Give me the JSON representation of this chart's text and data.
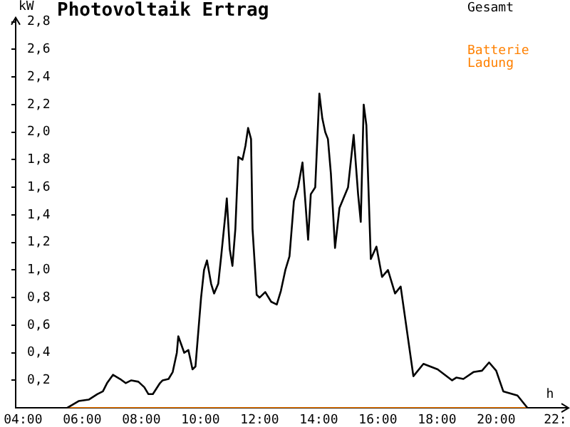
{
  "chart_data": {
    "type": "line",
    "title": "Photovoltaik Ertrag",
    "xlabel": "h",
    "ylabel": "kW",
    "xlim": [
      3.75,
      22.4
    ],
    "xticks": [
      {
        "value": 4,
        "label": "04:00"
      },
      {
        "value": 6,
        "label": "06:00"
      },
      {
        "value": 8,
        "label": "08:00"
      },
      {
        "value": 10,
        "label": "10:00"
      },
      {
        "value": 12,
        "label": "12:00"
      },
      {
        "value": 14,
        "label": "14:00"
      },
      {
        "value": 16,
        "label": "16:00"
      },
      {
        "value": 18,
        "label": "18:00"
      },
      {
        "value": 20,
        "label": "20:00"
      },
      {
        "value": 22,
        "label": "22:"
      }
    ],
    "ylim": [
      0,
      2.82
    ],
    "yticks": [
      {
        "value": 0.2,
        "label": "0,2"
      },
      {
        "value": 0.4,
        "label": "0,4"
      },
      {
        "value": 0.6,
        "label": "0,6"
      },
      {
        "value": 0.8,
        "label": "0,8"
      },
      {
        "value": 1.0,
        "label": "1,0"
      },
      {
        "value": 1.2,
        "label": "1,2"
      },
      {
        "value": 1.4,
        "label": "1,4"
      },
      {
        "value": 1.6,
        "label": "1,6"
      },
      {
        "value": 1.8,
        "label": "1,8"
      },
      {
        "value": 2.0,
        "label": "2,0"
      },
      {
        "value": 2.2,
        "label": "2,2"
      },
      {
        "value": 2.4,
        "label": "2,4"
      },
      {
        "value": 2.6,
        "label": "2,6"
      },
      {
        "value": 2.8,
        "label": "2,8"
      }
    ],
    "grid": false,
    "legend": "top right",
    "marker": "none",
    "line_style": "solid",
    "series": [
      {
        "name": "Gesamt",
        "color": "#000000",
        "x": [
          5.49,
          5.88,
          6.22,
          6.51,
          6.7,
          6.84,
          7.04,
          7.28,
          7.47,
          7.66,
          7.9,
          8.1,
          8.24,
          8.39,
          8.63,
          8.72,
          8.92,
          9.06,
          9.2,
          9.25,
          9.45,
          9.59,
          9.73,
          9.83,
          10.02,
          10.12,
          10.22,
          10.36,
          10.46,
          10.6,
          10.7,
          10.84,
          10.89,
          10.99,
          11.08,
          11.18,
          11.28,
          11.42,
          11.52,
          11.61,
          11.71,
          11.76,
          11.9,
          12.0,
          12.19,
          12.39,
          12.58,
          12.72,
          12.87,
          13.01,
          13.16,
          13.3,
          13.45,
          13.64,
          13.73,
          13.88,
          14.02,
          14.12,
          14.22,
          14.31,
          14.41,
          14.55,
          14.7,
          14.99,
          15.18,
          15.33,
          15.42,
          15.52,
          15.61,
          15.76,
          15.95,
          16.14,
          16.34,
          16.58,
          16.77,
          17.2,
          17.54,
          18.02,
          18.51,
          18.65,
          18.89,
          19.23,
          19.52,
          19.76,
          20.0,
          20.24,
          20.72,
          21.06
        ],
        "values": [
          0,
          0.05,
          0.06,
          0.1,
          0.12,
          0.18,
          0.24,
          0.21,
          0.18,
          0.2,
          0.19,
          0.15,
          0.1,
          0.1,
          0.18,
          0.2,
          0.21,
          0.26,
          0.4,
          0.52,
          0.4,
          0.42,
          0.28,
          0.3,
          0.8,
          1.0,
          1.07,
          0.9,
          0.83,
          0.9,
          1.1,
          1.4,
          1.52,
          1.15,
          1.03,
          1.3,
          1.82,
          1.8,
          1.9,
          2.03,
          1.95,
          1.3,
          0.82,
          0.8,
          0.84,
          0.77,
          0.75,
          0.85,
          1.0,
          1.1,
          1.5,
          1.6,
          1.78,
          1.22,
          1.55,
          1.6,
          2.28,
          2.1,
          2.0,
          1.95,
          1.7,
          1.16,
          1.45,
          1.6,
          1.98,
          1.55,
          1.35,
          2.2,
          2.05,
          1.08,
          1.17,
          0.95,
          1.0,
          0.83,
          0.88,
          0.23,
          0.32,
          0.28,
          0.2,
          0.22,
          0.21,
          0.26,
          0.27,
          0.33,
          0.27,
          0.12,
          0.09,
          0
        ]
      },
      {
        "name": "Batterie Ladung",
        "color": "#ff8000",
        "x": [
          5.5,
          21.06
        ],
        "values": [
          0,
          0
        ]
      }
    ]
  }
}
